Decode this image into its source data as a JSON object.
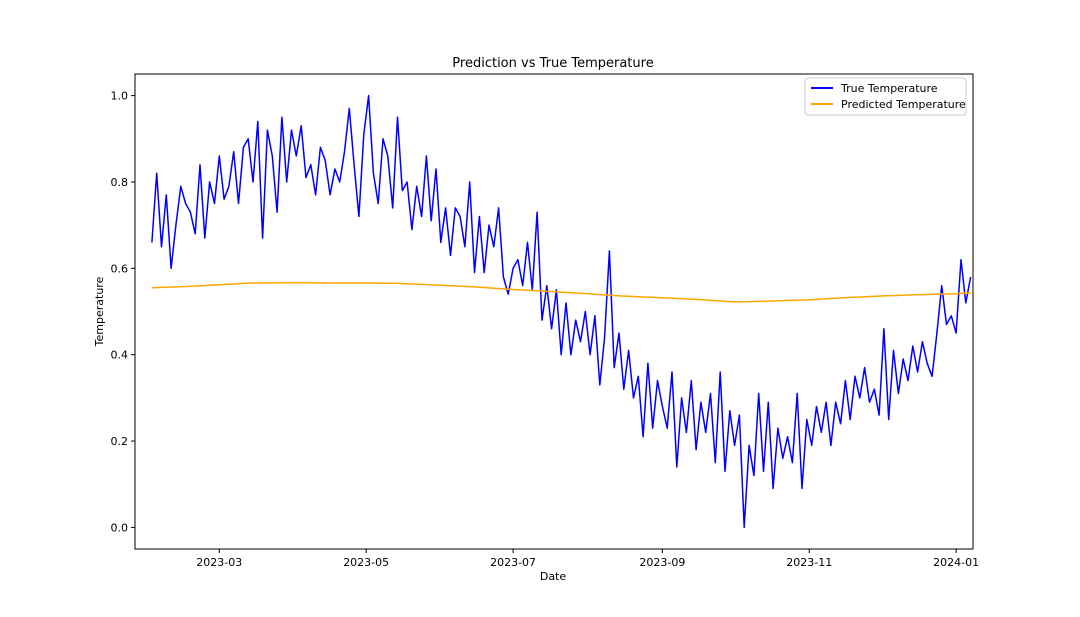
{
  "chart_data": {
    "type": "line",
    "title": "Prediction vs True Temperature",
    "xlabel": "Date",
    "ylabel": "Temperature",
    "xlim": [
      "2023-01-25",
      "2024-01-08"
    ],
    "ylim": [
      -0.05,
      1.05
    ],
    "x_ticks": [
      "2023-03-01",
      "2023-05-01",
      "2023-07-01",
      "2023-09-01",
      "2023-11-01",
      "2024-01-01"
    ],
    "x_tick_labels": [
      "2023-03",
      "2023-05",
      "2023-07",
      "2023-09",
      "2023-11",
      "2024-01"
    ],
    "y_ticks": [
      0.0,
      0.2,
      0.4,
      0.6,
      0.8,
      1.0
    ],
    "y_tick_labels": [
      "0.0",
      "0.2",
      "0.4",
      "0.6",
      "0.8",
      "1.0"
    ],
    "grid": false,
    "legend_position": "top-right",
    "series": [
      {
        "name": "True Temperature",
        "color": "#0000ff",
        "points": [
          [
            "2023-02-01",
            0.66
          ],
          [
            "2023-02-03",
            0.82
          ],
          [
            "2023-02-05",
            0.65
          ],
          [
            "2023-02-07",
            0.77
          ],
          [
            "2023-02-09",
            0.6
          ],
          [
            "2023-02-11",
            0.7
          ],
          [
            "2023-02-13",
            0.79
          ],
          [
            "2023-02-15",
            0.75
          ],
          [
            "2023-02-17",
            0.73
          ],
          [
            "2023-02-19",
            0.68
          ],
          [
            "2023-02-21",
            0.84
          ],
          [
            "2023-02-23",
            0.67
          ],
          [
            "2023-02-25",
            0.8
          ],
          [
            "2023-02-27",
            0.75
          ],
          [
            "2023-03-01",
            0.86
          ],
          [
            "2023-03-03",
            0.76
          ],
          [
            "2023-03-05",
            0.79
          ],
          [
            "2023-03-07",
            0.87
          ],
          [
            "2023-03-09",
            0.75
          ],
          [
            "2023-03-11",
            0.88
          ],
          [
            "2023-03-13",
            0.9
          ],
          [
            "2023-03-15",
            0.8
          ],
          [
            "2023-03-17",
            0.94
          ],
          [
            "2023-03-19",
            0.67
          ],
          [
            "2023-03-21",
            0.92
          ],
          [
            "2023-03-23",
            0.86
          ],
          [
            "2023-03-25",
            0.73
          ],
          [
            "2023-03-27",
            0.95
          ],
          [
            "2023-03-29",
            0.8
          ],
          [
            "2023-03-31",
            0.92
          ],
          [
            "2023-04-02",
            0.86
          ],
          [
            "2023-04-04",
            0.93
          ],
          [
            "2023-04-06",
            0.81
          ],
          [
            "2023-04-08",
            0.84
          ],
          [
            "2023-04-10",
            0.77
          ],
          [
            "2023-04-12",
            0.88
          ],
          [
            "2023-04-14",
            0.85
          ],
          [
            "2023-04-16",
            0.77
          ],
          [
            "2023-04-18",
            0.83
          ],
          [
            "2023-04-20",
            0.8
          ],
          [
            "2023-04-22",
            0.87
          ],
          [
            "2023-04-24",
            0.97
          ],
          [
            "2023-04-26",
            0.84
          ],
          [
            "2023-04-28",
            0.72
          ],
          [
            "2023-04-30",
            0.91
          ],
          [
            "2023-05-02",
            1.0
          ],
          [
            "2023-05-04",
            0.82
          ],
          [
            "2023-05-06",
            0.75
          ],
          [
            "2023-05-08",
            0.9
          ],
          [
            "2023-05-10",
            0.86
          ],
          [
            "2023-05-12",
            0.74
          ],
          [
            "2023-05-14",
            0.95
          ],
          [
            "2023-05-16",
            0.78
          ],
          [
            "2023-05-18",
            0.8
          ],
          [
            "2023-05-20",
            0.69
          ],
          [
            "2023-05-22",
            0.79
          ],
          [
            "2023-05-24",
            0.72
          ],
          [
            "2023-05-26",
            0.86
          ],
          [
            "2023-05-28",
            0.71
          ],
          [
            "2023-05-30",
            0.83
          ],
          [
            "2023-06-01",
            0.66
          ],
          [
            "2023-06-03",
            0.74
          ],
          [
            "2023-06-05",
            0.63
          ],
          [
            "2023-06-07",
            0.74
          ],
          [
            "2023-06-09",
            0.72
          ],
          [
            "2023-06-11",
            0.65
          ],
          [
            "2023-06-13",
            0.8
          ],
          [
            "2023-06-15",
            0.59
          ],
          [
            "2023-06-17",
            0.72
          ],
          [
            "2023-06-19",
            0.59
          ],
          [
            "2023-06-21",
            0.7
          ],
          [
            "2023-06-23",
            0.65
          ],
          [
            "2023-06-25",
            0.74
          ],
          [
            "2023-06-27",
            0.58
          ],
          [
            "2023-06-29",
            0.54
          ],
          [
            "2023-07-01",
            0.6
          ],
          [
            "2023-07-03",
            0.62
          ],
          [
            "2023-07-05",
            0.56
          ],
          [
            "2023-07-07",
            0.66
          ],
          [
            "2023-07-09",
            0.55
          ],
          [
            "2023-07-11",
            0.73
          ],
          [
            "2023-07-13",
            0.48
          ],
          [
            "2023-07-15",
            0.56
          ],
          [
            "2023-07-17",
            0.46
          ],
          [
            "2023-07-19",
            0.55
          ],
          [
            "2023-07-21",
            0.4
          ],
          [
            "2023-07-23",
            0.52
          ],
          [
            "2023-07-25",
            0.4
          ],
          [
            "2023-07-27",
            0.48
          ],
          [
            "2023-07-29",
            0.43
          ],
          [
            "2023-07-31",
            0.5
          ],
          [
            "2023-08-02",
            0.4
          ],
          [
            "2023-08-04",
            0.49
          ],
          [
            "2023-08-06",
            0.33
          ],
          [
            "2023-08-08",
            0.44
          ],
          [
            "2023-08-10",
            0.64
          ],
          [
            "2023-08-12",
            0.37
          ],
          [
            "2023-08-14",
            0.45
          ],
          [
            "2023-08-16",
            0.32
          ],
          [
            "2023-08-18",
            0.41
          ],
          [
            "2023-08-20",
            0.3
          ],
          [
            "2023-08-22",
            0.35
          ],
          [
            "2023-08-24",
            0.21
          ],
          [
            "2023-08-26",
            0.38
          ],
          [
            "2023-08-28",
            0.23
          ],
          [
            "2023-08-30",
            0.34
          ],
          [
            "2023-09-01",
            0.28
          ],
          [
            "2023-09-03",
            0.23
          ],
          [
            "2023-09-05",
            0.36
          ],
          [
            "2023-09-07",
            0.14
          ],
          [
            "2023-09-09",
            0.3
          ],
          [
            "2023-09-11",
            0.22
          ],
          [
            "2023-09-13",
            0.34
          ],
          [
            "2023-09-15",
            0.18
          ],
          [
            "2023-09-17",
            0.29
          ],
          [
            "2023-09-19",
            0.22
          ],
          [
            "2023-09-21",
            0.31
          ],
          [
            "2023-09-23",
            0.15
          ],
          [
            "2023-09-25",
            0.36
          ],
          [
            "2023-09-27",
            0.13
          ],
          [
            "2023-09-29",
            0.27
          ],
          [
            "2023-10-01",
            0.19
          ],
          [
            "2023-10-03",
            0.26
          ],
          [
            "2023-10-05",
            0.0
          ],
          [
            "2023-10-07",
            0.19
          ],
          [
            "2023-10-09",
            0.12
          ],
          [
            "2023-10-11",
            0.31
          ],
          [
            "2023-10-13",
            0.13
          ],
          [
            "2023-10-15",
            0.29
          ],
          [
            "2023-10-17",
            0.09
          ],
          [
            "2023-10-19",
            0.23
          ],
          [
            "2023-10-21",
            0.16
          ],
          [
            "2023-10-23",
            0.21
          ],
          [
            "2023-10-25",
            0.15
          ],
          [
            "2023-10-27",
            0.31
          ],
          [
            "2023-10-29",
            0.09
          ],
          [
            "2023-10-31",
            0.25
          ],
          [
            "2023-11-02",
            0.19
          ],
          [
            "2023-11-04",
            0.28
          ],
          [
            "2023-11-06",
            0.22
          ],
          [
            "2023-11-08",
            0.29
          ],
          [
            "2023-11-10",
            0.19
          ],
          [
            "2023-11-12",
            0.29
          ],
          [
            "2023-11-14",
            0.24
          ],
          [
            "2023-11-16",
            0.34
          ],
          [
            "2023-11-18",
            0.25
          ],
          [
            "2023-11-20",
            0.35
          ],
          [
            "2023-11-22",
            0.3
          ],
          [
            "2023-11-24",
            0.37
          ],
          [
            "2023-11-26",
            0.29
          ],
          [
            "2023-11-28",
            0.32
          ],
          [
            "2023-11-30",
            0.26
          ],
          [
            "2023-12-02",
            0.46
          ],
          [
            "2023-12-04",
            0.25
          ],
          [
            "2023-12-06",
            0.41
          ],
          [
            "2023-12-08",
            0.31
          ],
          [
            "2023-12-10",
            0.39
          ],
          [
            "2023-12-12",
            0.34
          ],
          [
            "2023-12-14",
            0.42
          ],
          [
            "2023-12-16",
            0.36
          ],
          [
            "2023-12-18",
            0.43
          ],
          [
            "2023-12-20",
            0.38
          ],
          [
            "2023-12-22",
            0.35
          ],
          [
            "2023-12-24",
            0.45
          ],
          [
            "2023-12-26",
            0.56
          ],
          [
            "2023-12-28",
            0.47
          ],
          [
            "2023-12-30",
            0.49
          ],
          [
            "2024-01-01",
            0.45
          ],
          [
            "2024-01-03",
            0.62
          ],
          [
            "2024-01-05",
            0.52
          ],
          [
            "2024-01-07",
            0.58
          ]
        ]
      },
      {
        "name": "Predicted Temperature",
        "color": "#ffa500",
        "points": [
          [
            "2023-02-01",
            0.555
          ],
          [
            "2023-02-15",
            0.558
          ],
          [
            "2023-03-01",
            0.562
          ],
          [
            "2023-03-15",
            0.566
          ],
          [
            "2023-04-01",
            0.567
          ],
          [
            "2023-04-15",
            0.566
          ],
          [
            "2023-05-01",
            0.566
          ],
          [
            "2023-05-15",
            0.565
          ],
          [
            "2023-06-01",
            0.561
          ],
          [
            "2023-06-15",
            0.557
          ],
          [
            "2023-07-01",
            0.551
          ],
          [
            "2023-07-15",
            0.547
          ],
          [
            "2023-08-01",
            0.541
          ],
          [
            "2023-08-15",
            0.536
          ],
          [
            "2023-09-01",
            0.532
          ],
          [
            "2023-09-15",
            0.528
          ],
          [
            "2023-10-01",
            0.522
          ],
          [
            "2023-10-15",
            0.524
          ],
          [
            "2023-11-01",
            0.527
          ],
          [
            "2023-11-15",
            0.532
          ],
          [
            "2023-12-01",
            0.536
          ],
          [
            "2023-12-15",
            0.539
          ],
          [
            "2024-01-01",
            0.541
          ],
          [
            "2024-01-07",
            0.543
          ]
        ]
      }
    ]
  }
}
